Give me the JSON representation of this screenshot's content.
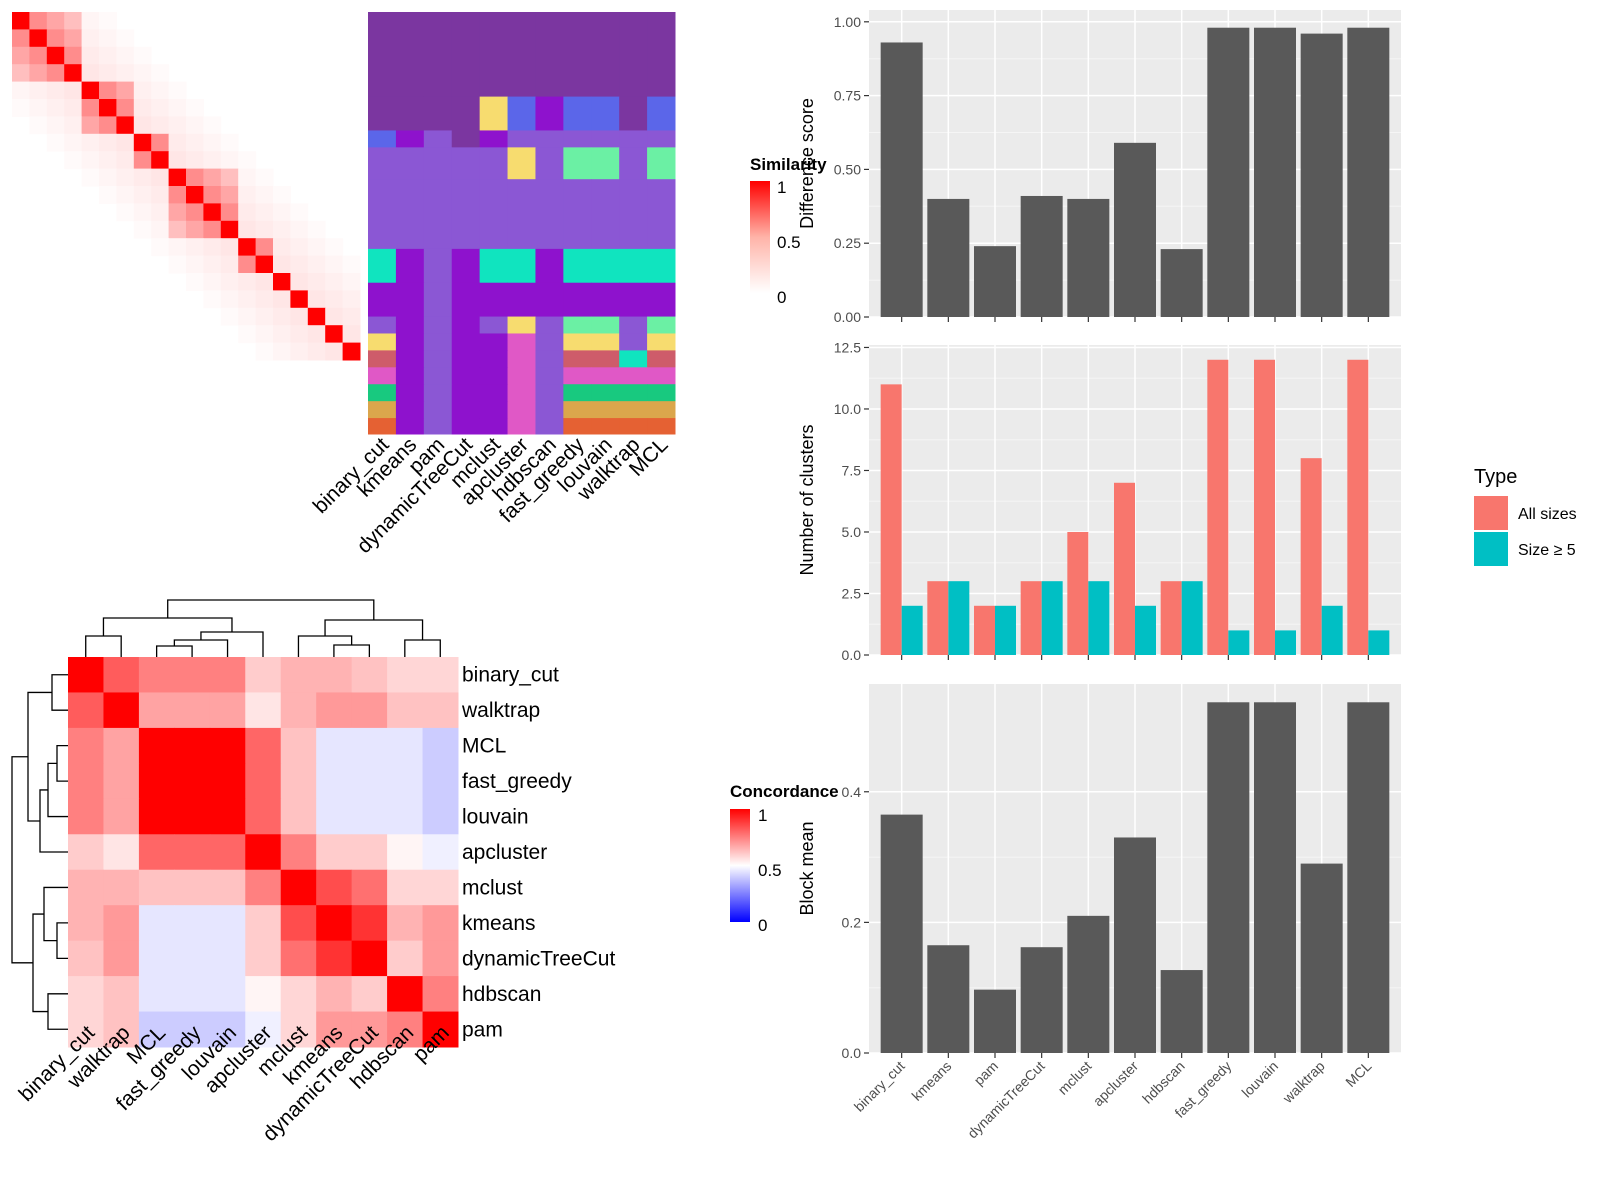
{
  "methods": [
    "binary_cut",
    "kmeans",
    "pam",
    "dynamicTreeCut",
    "mclust",
    "apcluster",
    "hdbscan",
    "fast_greedy",
    "louvain",
    "walktrap",
    "MCL"
  ],
  "similarity_legend": {
    "title": "Similarity",
    "ticks": [
      "1",
      "0.5",
      "0"
    ]
  },
  "concordance_legend": {
    "title": "Concordance",
    "ticks": [
      "1",
      "0.5",
      "0"
    ]
  },
  "type_legend": {
    "title": "Type",
    "items": [
      {
        "label": "All sizes",
        "color": "#F8766D"
      },
      {
        "label": "Size ≥ 5",
        "color": "#00BFC4"
      }
    ]
  },
  "colors": {
    "bar": "#595959",
    "panel_bg": "#EBEBEB",
    "similarity_high": "#FF0000",
    "concordance_low": "#0000FF"
  },
  "concordance": {
    "order": [
      "binary_cut",
      "walktrap",
      "MCL",
      "fast_greedy",
      "louvain",
      "apcluster",
      "mclust",
      "kmeans",
      "dynamicTreeCut",
      "hdbscan",
      "pam"
    ],
    "matrix": [
      [
        1.0,
        0.82,
        0.75,
        0.75,
        0.75,
        0.6,
        0.65,
        0.65,
        0.62,
        0.58,
        0.58
      ],
      [
        0.82,
        1.0,
        0.68,
        0.68,
        0.68,
        0.55,
        0.65,
        0.7,
        0.7,
        0.62,
        0.62
      ],
      [
        0.75,
        0.68,
        1.0,
        1.0,
        1.0,
        0.8,
        0.62,
        0.45,
        0.45,
        0.45,
        0.4
      ],
      [
        0.75,
        0.68,
        1.0,
        1.0,
        1.0,
        0.8,
        0.62,
        0.45,
        0.45,
        0.45,
        0.4
      ],
      [
        0.75,
        0.68,
        1.0,
        1.0,
        1.0,
        0.8,
        0.62,
        0.45,
        0.45,
        0.45,
        0.4
      ],
      [
        0.6,
        0.55,
        0.8,
        0.8,
        0.8,
        1.0,
        0.75,
        0.6,
        0.6,
        0.52,
        0.47
      ],
      [
        0.65,
        0.65,
        0.62,
        0.62,
        0.62,
        0.75,
        1.0,
        0.85,
        0.78,
        0.58,
        0.58
      ],
      [
        0.65,
        0.7,
        0.45,
        0.45,
        0.45,
        0.6,
        0.85,
        1.0,
        0.9,
        0.65,
        0.7
      ],
      [
        0.62,
        0.7,
        0.45,
        0.45,
        0.45,
        0.6,
        0.78,
        0.9,
        1.0,
        0.6,
        0.7
      ],
      [
        0.58,
        0.62,
        0.45,
        0.45,
        0.45,
        0.52,
        0.58,
        0.65,
        0.6,
        1.0,
        0.75
      ],
      [
        0.58,
        0.62,
        0.4,
        0.4,
        0.4,
        0.47,
        0.58,
        0.7,
        0.7,
        0.75,
        1.0
      ]
    ]
  },
  "chart_data": [
    {
      "type": "bar",
      "categories": [
        "binary_cut",
        "kmeans",
        "pam",
        "dynamicTreeCut",
        "mclust",
        "apcluster",
        "hdbscan",
        "fast_greedy",
        "louvain",
        "walktrap",
        "MCL"
      ],
      "values": [
        0.93,
        0.4,
        0.24,
        0.41,
        0.4,
        0.59,
        0.23,
        0.98,
        0.98,
        0.96,
        0.98
      ],
      "ylabel": "Difference score",
      "ylim": [
        0,
        1.04
      ],
      "yticks": [
        "0.00",
        "0.25",
        "0.50",
        "0.75",
        "1.00"
      ]
    },
    {
      "type": "bar",
      "categories": [
        "binary_cut",
        "kmeans",
        "pam",
        "dynamicTreeCut",
        "mclust",
        "apcluster",
        "hdbscan",
        "fast_greedy",
        "louvain",
        "walktrap",
        "MCL"
      ],
      "series": [
        {
          "name": "All sizes",
          "values": [
            11,
            3,
            2,
            3,
            5,
            7,
            3,
            12,
            12,
            8,
            12
          ]
        },
        {
          "name": "Size ≥ 5",
          "values": [
            2,
            3,
            2,
            3,
            3,
            2,
            3,
            1,
            1,
            2,
            1
          ]
        }
      ],
      "ylabel": "Number of clusters",
      "ylim": [
        0,
        12.6
      ],
      "yticks": [
        "0.0",
        "2.5",
        "5.0",
        "7.5",
        "10.0",
        "12.5"
      ]
    },
    {
      "type": "bar",
      "categories": [
        "binary_cut",
        "kmeans",
        "pam",
        "dynamicTreeCut",
        "mclust",
        "apcluster",
        "hdbscan",
        "fast_greedy",
        "louvain",
        "walktrap",
        "MCL"
      ],
      "values": [
        0.365,
        0.165,
        0.097,
        0.162,
        0.21,
        0.33,
        0.127,
        0.537,
        0.537,
        0.29,
        0.537
      ],
      "ylabel": "Block mean",
      "ylim": [
        0,
        0.565
      ],
      "yticks": [
        "0.0",
        "0.2",
        "0.4"
      ]
    }
  ]
}
